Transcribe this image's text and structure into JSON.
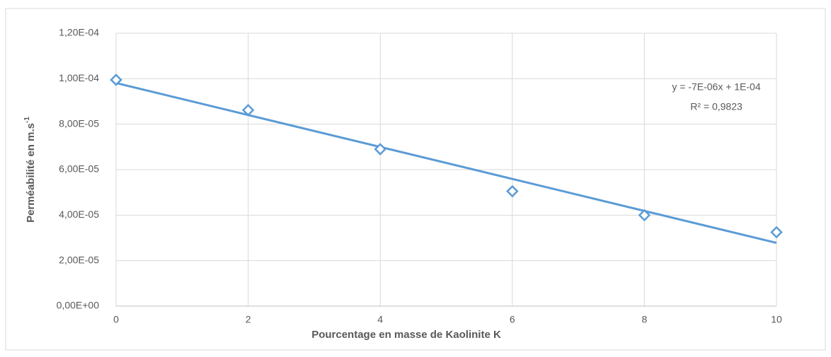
{
  "chart_data": {
    "type": "scatter",
    "xlabel": "Pourcentage en masse de Kaolinite K",
    "ylabel": {
      "text": "Perméabilité en m.s",
      "superscript": "-1"
    },
    "series": [
      {
        "color": "#5b9bd5",
        "x": [
          0,
          2,
          4,
          6,
          8,
          10
        ],
        "values": [
          9.95e-05,
          8.62e-05,
          6.9e-05,
          5.05e-05,
          4e-05,
          3.25e-05
        ]
      }
    ],
    "trendline": true,
    "annotations": [
      "y = -7E-06x + 1E-04",
      "R² = 0,9823"
    ],
    "xlim": [
      0,
      10
    ],
    "xticks": [
      0,
      2,
      4,
      6,
      8,
      10
    ],
    "ylim": [
      0,
      0.00012
    ],
    "yticks": [
      {
        "value": 0,
        "label": "0,00E+00"
      },
      {
        "value": 2e-05,
        "label": "2,00E-05"
      },
      {
        "value": 4e-05,
        "label": "4,00E-05"
      },
      {
        "value": 6e-05,
        "label": "6,00E-05"
      },
      {
        "value": 8e-05,
        "label": "8,00E-05"
      },
      {
        "value": 0.0001,
        "label": "1,00E-04"
      },
      {
        "value": 0.00012,
        "label": "1,20E-04"
      }
    ],
    "grid": true
  }
}
